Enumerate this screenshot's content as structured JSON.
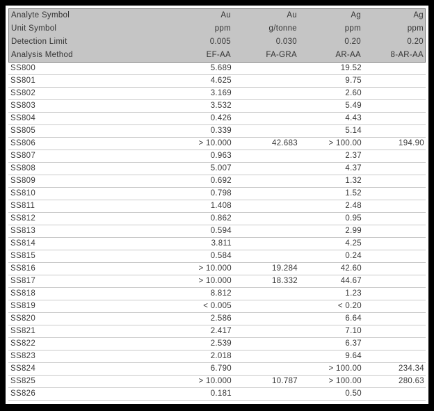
{
  "colors": {
    "frame": "#000000",
    "page_bg": "#ffffff",
    "header_bg": "#c5c5c5",
    "header_border": "#7f7f7f",
    "row_line": "#c9c9c9",
    "text": "#383838"
  },
  "table": {
    "header_rows": [
      {
        "label": "Analyte Symbol",
        "values": [
          "Au",
          "Au",
          "Ag",
          "Ag"
        ]
      },
      {
        "label": "Unit Symbol",
        "values": [
          "ppm",
          "g/tonne",
          "ppm",
          "ppm"
        ]
      },
      {
        "label": "Detection Limit",
        "values": [
          "0.005",
          "0.030",
          "0.20",
          "0.20"
        ]
      },
      {
        "label": "Analysis Method",
        "values": [
          "EF-AA",
          "FA-GRA",
          "AR-AA",
          "8-AR-AA"
        ]
      }
    ],
    "rows": [
      {
        "sample": "SS800",
        "values": [
          "5.689",
          "",
          "19.52",
          ""
        ]
      },
      {
        "sample": "SS801",
        "values": [
          "4.625",
          "",
          "9.75",
          ""
        ]
      },
      {
        "sample": "SS802",
        "values": [
          "3.169",
          "",
          "2.60",
          ""
        ]
      },
      {
        "sample": "SS803",
        "values": [
          "3.532",
          "",
          "5.49",
          ""
        ]
      },
      {
        "sample": "SS804",
        "values": [
          "0.426",
          "",
          "4.43",
          ""
        ]
      },
      {
        "sample": "SS805",
        "values": [
          "0.339",
          "",
          "5.14",
          ""
        ]
      },
      {
        "sample": "SS806",
        "values": [
          "> 10.000",
          "42.683",
          "> 100.00",
          "194.90"
        ]
      },
      {
        "sample": "SS807",
        "values": [
          "0.963",
          "",
          "2.37",
          ""
        ]
      },
      {
        "sample": "SS808",
        "values": [
          "5.007",
          "",
          "4.37",
          ""
        ]
      },
      {
        "sample": "SS809",
        "values": [
          "0.692",
          "",
          "1.32",
          ""
        ]
      },
      {
        "sample": "SS810",
        "values": [
          "0.798",
          "",
          "1.52",
          ""
        ]
      },
      {
        "sample": "SS811",
        "values": [
          "1.408",
          "",
          "2.48",
          ""
        ]
      },
      {
        "sample": "SS812",
        "values": [
          "0.862",
          "",
          "0.95",
          ""
        ]
      },
      {
        "sample": "SS813",
        "values": [
          "0.594",
          "",
          "2.99",
          ""
        ]
      },
      {
        "sample": "SS814",
        "values": [
          "3.811",
          "",
          "4.25",
          ""
        ]
      },
      {
        "sample": "SS815",
        "values": [
          "0.584",
          "",
          "0.24",
          ""
        ]
      },
      {
        "sample": "SS816",
        "values": [
          "> 10.000",
          "19.284",
          "42.60",
          ""
        ]
      },
      {
        "sample": "SS817",
        "values": [
          "> 10.000",
          "18.332",
          "44.67",
          ""
        ]
      },
      {
        "sample": "SS818",
        "values": [
          "8.812",
          "",
          "1.23",
          ""
        ]
      },
      {
        "sample": "SS819",
        "values": [
          "< 0.005",
          "",
          "< 0.20",
          ""
        ]
      },
      {
        "sample": "SS820",
        "values": [
          "2.586",
          "",
          "6.64",
          ""
        ]
      },
      {
        "sample": "SS821",
        "values": [
          "2.417",
          "",
          "7.10",
          ""
        ]
      },
      {
        "sample": "SS822",
        "values": [
          "2.539",
          "",
          "6.37",
          ""
        ]
      },
      {
        "sample": "SS823",
        "values": [
          "2.018",
          "",
          "9.64",
          ""
        ]
      },
      {
        "sample": "SS824",
        "values": [
          "6.790",
          "",
          "> 100.00",
          "234.34"
        ]
      },
      {
        "sample": "SS825",
        "values": [
          "> 10.000",
          "10.787",
          "> 100.00",
          "280.63"
        ]
      },
      {
        "sample": "SS826",
        "values": [
          "0.181",
          "",
          "0.50",
          ""
        ]
      }
    ]
  }
}
